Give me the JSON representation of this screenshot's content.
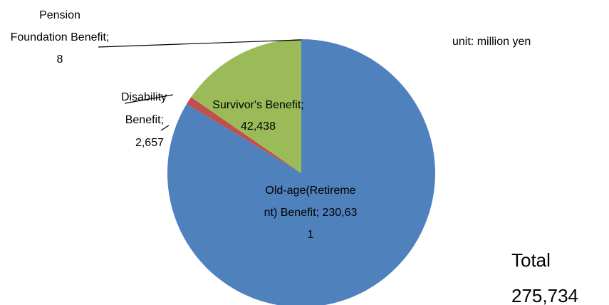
{
  "chart_data": {
    "type": "pie",
    "labels": [
      "Old-age(Retirement) Benefit; 230,631",
      "Disability Benefit; 2,657",
      "Survivor's Benefit; 42,438",
      "Pension Foundation Benefit; 8"
    ],
    "values": [
      230631,
      2657,
      42438,
      8
    ],
    "colors": [
      "#4f81bd",
      "#c0504d",
      "#9bbb59",
      "#8064a2"
    ],
    "annotations": [
      "unit: million yen",
      "Total 275,734"
    ]
  }
}
